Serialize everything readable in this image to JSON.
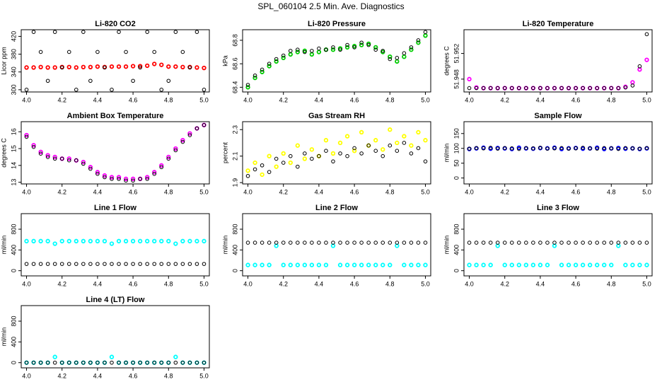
{
  "title": "SPL_060104  2.5 Min. Ave. Diagnostics",
  "chart_data": [
    {
      "type": "scatter",
      "title": "Li-820 CO2",
      "ylabel": "Licor ppm",
      "x": [
        4,
        4.04,
        4.08,
        4.12,
        4.16,
        4.2,
        4.24,
        4.28,
        4.32,
        4.36,
        4.4,
        4.44,
        4.48,
        4.52,
        4.56,
        4.6,
        4.64,
        4.68,
        4.72,
        4.76,
        4.8,
        4.84,
        4.88,
        4.92,
        4.96,
        5
      ],
      "series": [
        {
          "color": "#ff0000",
          "values": [
            350,
            350,
            351,
            350,
            350,
            351,
            351,
            350,
            351,
            351,
            352,
            351,
            352,
            352,
            352,
            353,
            353,
            354,
            358,
            356,
            352,
            352,
            351,
            351,
            350,
            349
          ]
        },
        {
          "color": "#000000",
          "values": [
            300,
            430,
            385,
            320,
            430,
            350,
            385,
            300,
            430,
            320,
            385,
            350,
            300,
            430,
            385,
            320,
            350,
            430,
            385,
            300,
            320,
            430,
            385,
            350,
            430,
            300
          ]
        }
      ],
      "xlim": [
        3.97,
        5.03
      ],
      "xticks": [
        {
          "value": 4,
          "label": "4.0"
        },
        4.2,
        4.4,
        4.6,
        4.8,
        {
          "value": 5,
          "label": "5.0"
        }
      ],
      "ylim": [
        295,
        435
      ],
      "yticks": [
        300,
        340,
        380,
        420
      ]
    },
    {
      "type": "scatter",
      "title": "Li-820 Pressure",
      "ylabel": "kPa",
      "x": [
        4,
        4.04,
        4.08,
        4.12,
        4.16,
        4.2,
        4.24,
        4.28,
        4.32,
        4.36,
        4.4,
        4.44,
        4.48,
        4.52,
        4.56,
        4.6,
        4.64,
        4.68,
        4.72,
        4.76,
        4.8,
        4.84,
        4.88,
        4.92,
        4.96,
        5
      ],
      "series": [
        {
          "color": "#00cc00",
          "values": [
            68.4,
            68.48,
            68.53,
            68.58,
            68.62,
            68.65,
            68.68,
            68.7,
            68.71,
            68.68,
            68.7,
            68.72,
            68.72,
            68.73,
            68.74,
            68.75,
            68.76,
            68.77,
            68.74,
            68.7,
            68.66,
            68.62,
            68.66,
            68.72,
            68.78,
            68.84
          ]
        },
        {
          "color": "#000000",
          "values": [
            68.42,
            68.5,
            68.55,
            68.6,
            68.64,
            68.67,
            68.71,
            68.72,
            68.7,
            68.71,
            68.73,
            68.72,
            68.74,
            68.72,
            68.76,
            68.74,
            68.78,
            68.76,
            68.72,
            68.71,
            68.64,
            68.65,
            68.69,
            68.74,
            68.8,
            68.87
          ]
        }
      ],
      "xlim": [
        3.97,
        5.03
      ],
      "xticks": [
        {
          "value": 4,
          "label": "4.0"
        },
        4.2,
        4.4,
        4.6,
        4.8,
        {
          "value": 5,
          "label": "5.0"
        }
      ],
      "ylim": [
        68.36,
        68.89
      ],
      "yticks": [
        68.4,
        68.6,
        68.8
      ]
    },
    {
      "type": "scatter",
      "title": "Li-820 Temperature",
      "ylabel": "degrees C",
      "x": [
        4,
        4.04,
        4.08,
        4.12,
        4.16,
        4.2,
        4.24,
        4.28,
        4.32,
        4.36,
        4.4,
        4.44,
        4.48,
        4.52,
        4.56,
        4.6,
        4.64,
        4.68,
        4.72,
        4.76,
        4.8,
        4.84,
        4.88,
        4.92,
        4.96,
        5
      ],
      "series": [
        {
          "color": "#ff00ff",
          "values": [
            51.948,
            51.9467,
            51.9466,
            51.9466,
            51.9466,
            51.9466,
            51.9466,
            51.9466,
            51.9466,
            51.9466,
            51.9466,
            51.9466,
            51.9466,
            51.9466,
            51.9466,
            51.9466,
            51.9466,
            51.9466,
            51.9466,
            51.9466,
            51.9466,
            51.9466,
            51.9468,
            51.9475,
            51.9495,
            51.951
          ]
        },
        {
          "color": "#000000",
          "values": [
            51.9466,
            51.9466,
            51.9466,
            51.9466,
            51.9466,
            51.9466,
            51.9466,
            51.9466,
            51.9466,
            51.9466,
            51.9466,
            51.9466,
            51.9466,
            51.9466,
            51.9466,
            51.9466,
            51.9466,
            51.9466,
            51.9466,
            51.9466,
            51.9466,
            51.9466,
            51.9467,
            51.947,
            51.95,
            51.955
          ]
        }
      ],
      "xlim": [
        3.97,
        5.03
      ],
      "xticks": [
        {
          "value": 4,
          "label": "4.0"
        },
        4.2,
        4.4,
        4.6,
        4.8,
        {
          "value": 5,
          "label": "5.0"
        }
      ],
      "ylim": [
        51.946,
        51.9557
      ],
      "yticks": [
        51.948,
        51.952
      ]
    },
    {
      "type": "scatter",
      "title": "Ambient Box Temperature",
      "ylabel": "degrees C",
      "x": [
        4,
        4.04,
        4.08,
        4.12,
        4.16,
        4.2,
        4.24,
        4.28,
        4.32,
        4.36,
        4.4,
        4.44,
        4.48,
        4.52,
        4.56,
        4.6,
        4.64,
        4.68,
        4.72,
        4.76,
        4.8,
        4.84,
        4.88,
        4.92,
        4.96,
        5
      ],
      "series": [
        {
          "color": "#ff00ff",
          "values": [
            15.8,
            15.2,
            14.8,
            14.6,
            14.5,
            14.4,
            14.4,
            14.3,
            14.2,
            13.9,
            13.6,
            13.4,
            13.3,
            13.3,
            13.2,
            13.2,
            13.2,
            13.3,
            13.6,
            14.0,
            14.5,
            15.0,
            15.5,
            15.9,
            16.2,
            16.4
          ]
        },
        {
          "color": "#000000",
          "values": [
            15.7,
            15.1,
            14.7,
            14.5,
            14.4,
            14.4,
            14.3,
            14.3,
            14.1,
            13.8,
            13.5,
            13.3,
            13.2,
            13.2,
            13.1,
            13.1,
            13.2,
            13.2,
            13.5,
            13.9,
            14.4,
            14.9,
            15.4,
            15.8,
            16.2,
            16.4
          ]
        }
      ],
      "xlim": [
        3.97,
        5.03
      ],
      "xticks": [
        {
          "value": 4,
          "label": "4.0"
        },
        4.2,
        4.4,
        4.6,
        4.8,
        {
          "value": 5,
          "label": "5.0"
        }
      ],
      "ylim": [
        12.9,
        16.6
      ],
      "yticks": [
        13,
        14,
        15,
        16
      ]
    },
    {
      "type": "scatter",
      "title": "Gas Stream RH",
      "ylabel": "percent",
      "x": [
        4,
        4.04,
        4.08,
        4.12,
        4.16,
        4.2,
        4.24,
        4.28,
        4.32,
        4.36,
        4.4,
        4.44,
        4.48,
        4.52,
        4.56,
        4.6,
        4.64,
        4.68,
        4.72,
        4.76,
        4.8,
        4.84,
        4.88,
        4.92,
        4.96,
        5
      ],
      "series": [
        {
          "color": "#ffff00",
          "values": [
            1.99,
            2.05,
            1.96,
            2.1,
            2.02,
            2.12,
            2.05,
            2.18,
            2.08,
            2.15,
            2.1,
            2.22,
            2.12,
            2.2,
            2.25,
            2.14,
            2.28,
            2.18,
            2.22,
            2.15,
            2.3,
            2.2,
            2.25,
            2.18,
            2.28,
            2.22
          ]
        },
        {
          "color": "#000000",
          "values": [
            1.95,
            2.0,
            2.03,
            1.98,
            2.08,
            2.05,
            2.1,
            2.02,
            2.12,
            2.08,
            2.1,
            2.14,
            2.06,
            2.12,
            2.1,
            2.16,
            2.12,
            2.18,
            2.14,
            2.1,
            2.18,
            2.14,
            2.2,
            2.12,
            2.16,
            2.06
          ]
        }
      ],
      "xlim": [
        3.97,
        5.03
      ],
      "xticks": [
        {
          "value": 4,
          "label": "4.0"
        },
        4.2,
        4.4,
        4.6,
        4.8,
        {
          "value": 5,
          "label": "5.0"
        }
      ],
      "ylim": [
        1.89,
        2.36
      ],
      "yticks": [
        1.9,
        2.1,
        2.3
      ]
    },
    {
      "type": "scatter",
      "title": "Sample Flow",
      "ylabel": "ml/min",
      "x": [
        4,
        4.04,
        4.08,
        4.12,
        4.16,
        4.2,
        4.24,
        4.28,
        4.32,
        4.36,
        4.4,
        4.44,
        4.48,
        4.52,
        4.56,
        4.6,
        4.64,
        4.68,
        4.72,
        4.76,
        4.8,
        4.84,
        4.88,
        4.92,
        4.96,
        5
      ],
      "series": [
        {
          "color": "#0000ff",
          "values": [
            98,
            100,
            102,
            99,
            101,
            100,
            98,
            102,
            100,
            99,
            101,
            100,
            102,
            98,
            100,
            101,
            99,
            100,
            102,
            98,
            100,
            101,
            99,
            100,
            98,
            100
          ]
        },
        {
          "color": "#000000",
          "values": [
            99,
            101,
            100,
            102,
            99,
            101,
            100,
            98,
            101,
            100,
            102,
            99,
            100,
            101,
            99,
            100,
            102,
            100,
            99,
            101,
            100,
            98,
            101,
            100,
            99,
            101
          ]
        }
      ],
      "xlim": [
        3.97,
        5.03
      ],
      "xticks": [
        {
          "value": 4,
          "label": "4.0"
        },
        4.2,
        4.4,
        4.6,
        4.8,
        {
          "value": 5,
          "label": "5.0"
        }
      ],
      "ylim": [
        -20,
        190
      ],
      "yticks": [
        0,
        50,
        100,
        150
      ]
    },
    {
      "type": "scatter",
      "title": "Line 1 Flow",
      "ylabel": "ml/min",
      "x": [
        4,
        4.04,
        4.08,
        4.12,
        4.16,
        4.2,
        4.24,
        4.28,
        4.32,
        4.36,
        4.4,
        4.44,
        4.48,
        4.52,
        4.56,
        4.6,
        4.64,
        4.68,
        4.72,
        4.76,
        4.8,
        4.84,
        4.88,
        4.92,
        4.96,
        5
      ],
      "series": [
        {
          "color": "#00ffff",
          "values": [
            570,
            570,
            570,
            570,
            520,
            570,
            570,
            570,
            570,
            570,
            570,
            570,
            520,
            570,
            570,
            570,
            570,
            570,
            570,
            570,
            570,
            520,
            570,
            570,
            570,
            570
          ]
        },
        {
          "color": "#000000",
          "values": [
            130,
            130,
            130,
            130,
            130,
            130,
            130,
            130,
            130,
            130,
            130,
            130,
            130,
            130,
            130,
            130,
            130,
            130,
            130,
            130,
            130,
            130,
            130,
            130,
            130,
            130
          ]
        }
      ],
      "xlim": [
        3.97,
        5.03
      ],
      "xticks": [
        {
          "value": 4,
          "label": "4.0"
        },
        4.2,
        4.4,
        4.6,
        4.8,
        {
          "value": 5,
          "label": "5.0"
        }
      ],
      "ylim": [
        -100,
        1100
      ],
      "yticks": [
        0,
        400,
        800
      ]
    },
    {
      "type": "scatter",
      "title": "Line 2 Flow",
      "ylabel": "ml/min",
      "x": [
        4,
        4.04,
        4.08,
        4.12,
        4.16,
        4.2,
        4.24,
        4.28,
        4.32,
        4.36,
        4.4,
        4.44,
        4.48,
        4.52,
        4.56,
        4.6,
        4.64,
        4.68,
        4.72,
        4.76,
        4.8,
        4.84,
        4.88,
        4.92,
        4.96,
        5
      ],
      "series": [
        {
          "color": "#00ffff",
          "values": [
            110,
            110,
            110,
            110,
            480,
            110,
            110,
            110,
            110,
            110,
            110,
            110,
            480,
            110,
            110,
            110,
            110,
            110,
            110,
            110,
            110,
            480,
            110,
            110,
            110,
            110
          ]
        },
        {
          "color": "#000000",
          "values": [
            540,
            540,
            540,
            540,
            540,
            540,
            540,
            540,
            540,
            540,
            540,
            540,
            540,
            540,
            540,
            540,
            540,
            540,
            540,
            540,
            540,
            540,
            540,
            540,
            540,
            540
          ]
        }
      ],
      "xlim": [
        3.97,
        5.03
      ],
      "xticks": [
        {
          "value": 4,
          "label": "4.0"
        },
        4.2,
        4.4,
        4.6,
        4.8,
        {
          "value": 5,
          "label": "5.0"
        }
      ],
      "ylim": [
        -100,
        1100
      ],
      "yticks": [
        0,
        400,
        800
      ]
    },
    {
      "type": "scatter",
      "title": "Line 3 Flow",
      "ylabel": "ml/min",
      "x": [
        4,
        4.04,
        4.08,
        4.12,
        4.16,
        4.2,
        4.24,
        4.28,
        4.32,
        4.36,
        4.4,
        4.44,
        4.48,
        4.52,
        4.56,
        4.6,
        4.64,
        4.68,
        4.72,
        4.76,
        4.8,
        4.84,
        4.88,
        4.92,
        4.96,
        5
      ],
      "series": [
        {
          "color": "#00ffff",
          "values": [
            110,
            110,
            110,
            110,
            480,
            110,
            110,
            110,
            110,
            110,
            110,
            110,
            480,
            110,
            110,
            110,
            110,
            110,
            110,
            110,
            110,
            480,
            110,
            110,
            110,
            110
          ]
        },
        {
          "color": "#000000",
          "values": [
            540,
            540,
            540,
            540,
            540,
            540,
            540,
            540,
            540,
            540,
            540,
            540,
            540,
            540,
            540,
            540,
            540,
            540,
            540,
            540,
            540,
            540,
            540,
            540,
            540,
            540
          ]
        }
      ],
      "xlim": [
        3.97,
        5.03
      ],
      "xticks": [
        {
          "value": 4,
          "label": "4.0"
        },
        4.2,
        4.4,
        4.6,
        4.8,
        {
          "value": 5,
          "label": "5.0"
        }
      ],
      "ylim": [
        -100,
        1100
      ],
      "yticks": [
        0,
        400,
        800
      ]
    },
    {
      "type": "scatter",
      "title": "Line 4 (LT) Flow",
      "ylabel": "ml/min",
      "x": [
        4,
        4.04,
        4.08,
        4.12,
        4.16,
        4.2,
        4.24,
        4.28,
        4.32,
        4.36,
        4.4,
        4.44,
        4.48,
        4.52,
        4.56,
        4.6,
        4.64,
        4.68,
        4.72,
        4.76,
        4.8,
        4.84,
        4.88,
        4.92,
        4.96,
        5
      ],
      "series": [
        {
          "color": "#00ffff",
          "values": [
            0,
            0,
            0,
            0,
            110,
            0,
            0,
            0,
            0,
            0,
            0,
            0,
            110,
            0,
            0,
            0,
            0,
            0,
            0,
            0,
            0,
            110,
            0,
            0,
            0,
            0
          ]
        },
        {
          "color": "#000000",
          "values": [
            0,
            0,
            0,
            0,
            0,
            0,
            0,
            0,
            0,
            0,
            0,
            0,
            0,
            0,
            0,
            0,
            0,
            0,
            0,
            0,
            0,
            0,
            0,
            0,
            0,
            0
          ]
        }
      ],
      "xlim": [
        3.97,
        5.03
      ],
      "xticks": [
        {
          "value": 4,
          "label": "4.0"
        },
        4.2,
        4.4,
        4.6,
        4.8,
        {
          "value": 5,
          "label": "5.0"
        }
      ],
      "ylim": [
        -100,
        1100
      ],
      "yticks": [
        0,
        400,
        800
      ]
    }
  ]
}
